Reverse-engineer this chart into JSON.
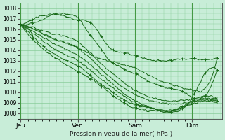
{
  "bg_color": "#c8edd8",
  "grid_color": "#88cc99",
  "line_color": "#1a6b1a",
  "ylim": [
    1007.5,
    1018.5
  ],
  "yticks": [
    1008,
    1009,
    1010,
    1011,
    1012,
    1013,
    1014,
    1015,
    1016,
    1017,
    1018
  ],
  "xlabel": "Pression niveau de la mer( hPa )",
  "xtick_labels": [
    "Jeu",
    "Ven",
    "Sam",
    "Dim"
  ],
  "xtick_positions": [
    0,
    96,
    192,
    288
  ],
  "xlim": [
    -2,
    338
  ],
  "lines": [
    {
      "x": [
        0,
        15,
        30,
        50,
        70,
        96,
        120,
        150,
        170,
        192,
        210,
        230,
        260,
        288,
        310,
        330
      ],
      "y": [
        1016.4,
        1016.8,
        1017.2,
        1017.4,
        1017.3,
        1016.9,
        1016.5,
        1014.2,
        1013.8,
        1013.5,
        1013.2,
        1013.0,
        1013.1,
        1013.2,
        1013.1,
        1013.3
      ],
      "marker": true
    },
    {
      "x": [
        0,
        20,
        40,
        60,
        80,
        96,
        110,
        130,
        150,
        165,
        180,
        192,
        210,
        225,
        240,
        260,
        280,
        288,
        310,
        330
      ],
      "y": [
        1016.4,
        1016.6,
        1017.0,
        1017.5,
        1017.4,
        1017.1,
        1016.0,
        1014.5,
        1013.0,
        1012.5,
        1012.0,
        1011.8,
        1011.2,
        1010.8,
        1010.5,
        1010.3,
        1009.8,
        1009.5,
        1009.7,
        1012.2
      ],
      "marker": true
    },
    {
      "x": [
        0,
        30,
        60,
        96,
        130,
        160,
        192,
        220,
        250,
        288,
        330
      ],
      "y": [
        1016.4,
        1016.0,
        1015.5,
        1014.8,
        1013.0,
        1011.5,
        1010.2,
        1009.5,
        1009.2,
        1009.3,
        1009.4
      ],
      "marker": false
    },
    {
      "x": [
        0,
        30,
        60,
        96,
        130,
        160,
        192,
        220,
        250,
        288,
        330
      ],
      "y": [
        1016.4,
        1015.8,
        1015.0,
        1014.2,
        1012.5,
        1011.0,
        1009.8,
        1009.2,
        1008.9,
        1009.1,
        1009.2
      ],
      "marker": false
    },
    {
      "x": [
        0,
        30,
        60,
        96,
        130,
        160,
        192,
        220,
        250,
        288,
        330
      ],
      "y": [
        1016.4,
        1015.5,
        1014.5,
        1013.5,
        1012.0,
        1010.5,
        1009.2,
        1008.5,
        1008.2,
        1009.0,
        1009.1
      ],
      "marker": false
    },
    {
      "x": [
        0,
        30,
        60,
        96,
        130,
        160,
        192,
        220,
        250,
        288,
        330
      ],
      "y": [
        1016.4,
        1015.2,
        1014.0,
        1013.0,
        1011.5,
        1010.2,
        1009.0,
        1008.5,
        1008.3,
        1008.9,
        1009.0
      ],
      "marker": false
    },
    {
      "x": [
        0,
        30,
        60,
        96,
        130,
        160,
        192,
        220,
        250,
        288,
        330
      ],
      "y": [
        1016.4,
        1014.8,
        1013.5,
        1012.5,
        1011.0,
        1009.8,
        1008.8,
        1008.5,
        1008.2,
        1009.2,
        1009.3
      ],
      "marker": true
    },
    {
      "x": [
        0,
        30,
        60,
        96,
        130,
        160,
        192,
        220,
        250,
        288,
        310,
        330
      ],
      "y": [
        1016.4,
        1014.5,
        1013.2,
        1012.0,
        1010.8,
        1009.5,
        1008.5,
        1008.3,
        1008.1,
        1009.5,
        1011.8,
        1012.0
      ],
      "marker": true
    },
    {
      "x": [
        0,
        15,
        30,
        50,
        70,
        96,
        120,
        150,
        180,
        192,
        210,
        230,
        250,
        280,
        288,
        310,
        330
      ],
      "y": [
        1016.4,
        1016.2,
        1015.8,
        1015.2,
        1014.8,
        1014.3,
        1013.5,
        1013.0,
        1012.5,
        1012.3,
        1011.8,
        1011.2,
        1010.8,
        1010.3,
        1010.2,
        1010.4,
        1013.3
      ],
      "marker": false
    }
  ]
}
